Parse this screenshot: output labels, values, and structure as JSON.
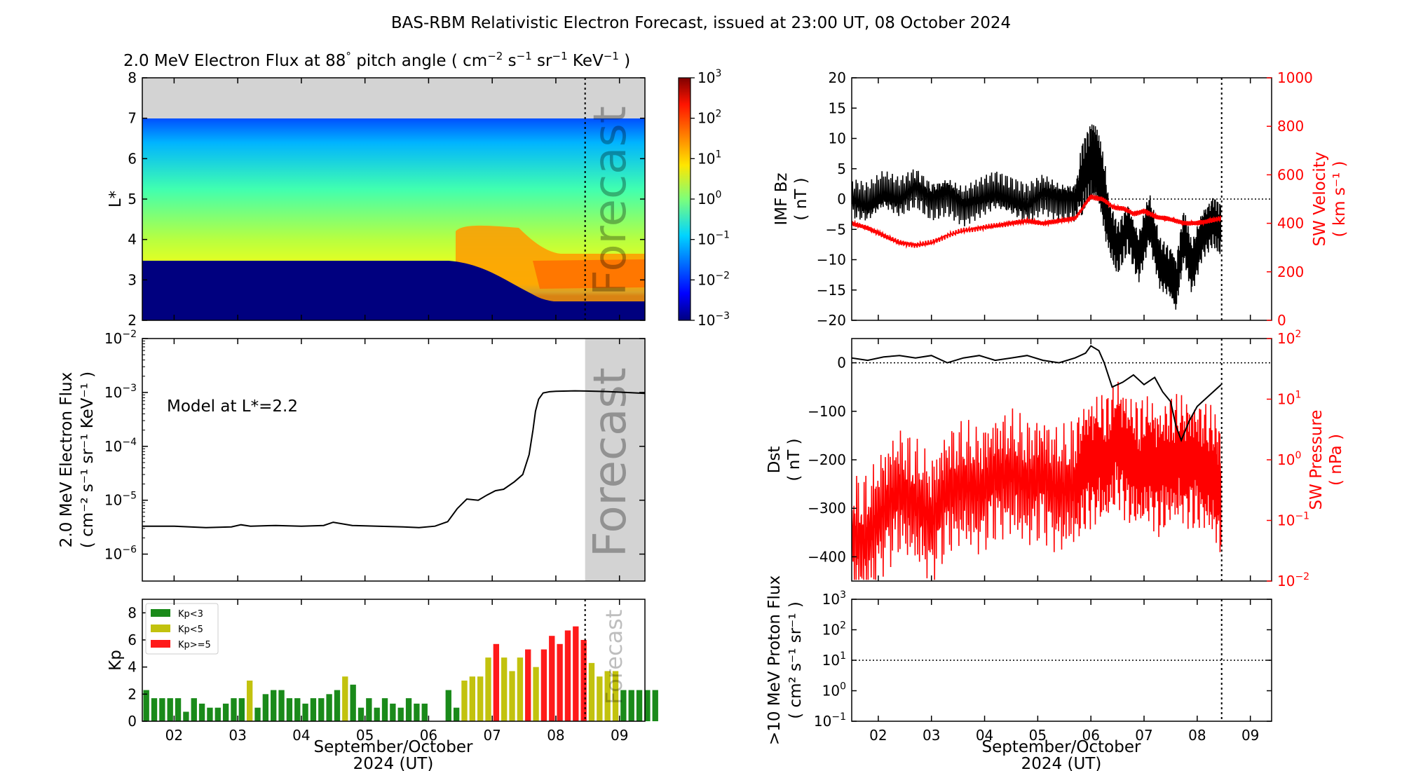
{
  "figure": {
    "title": "BAS-RBM Relativistic Electron Forecast, issued at 23:00 UT, 08 October 2024",
    "colors": {
      "observed": "#000000",
      "solarwind": "#ff0000",
      "forecast_band": "#d3d3d3",
      "kp_low": "#1a8a1a",
      "kp_mid": "#c2c20e",
      "kp_high": "#ff1a1a"
    }
  },
  "time_axis": {
    "tick_labels": [
      "02",
      "03",
      "04",
      "05",
      "06",
      "07",
      "08",
      "09"
    ],
    "xlabel_line1": "September/October",
    "xlabel_line2": "2024 (UT)",
    "xrange_days": [
      1.5,
      9.4
    ],
    "ticks_days": [
      2,
      3,
      4,
      5,
      6,
      7,
      8,
      9
    ],
    "forecast_start_day": 8.46
  },
  "chart_data": [
    {
      "id": "flux_map",
      "type": "heatmap",
      "title": "2.0 MeV Electron Flux at 88° pitch angle ( cm⁻² s⁻¹ sr⁻¹ KeV⁻¹ )",
      "title_parts": {
        "base": "2.0 MeV Electron Flux at 88",
        "degree": "°",
        "after_deg": " pitch angle ( cm",
        "e1": "−2",
        "s": " s",
        "e2": "−1",
        "sr": " sr",
        "e3": "−1",
        "kev": " KeV",
        "e4": "−1",
        "close": " )"
      },
      "ylabel": "L*",
      "ylim": [
        2,
        8
      ],
      "yticks": [
        "2",
        "3",
        "4",
        "5",
        "6",
        "7",
        "8"
      ],
      "annotation": "Forecast",
      "colorbar": {
        "base": "10",
        "exponents": [
          "−3",
          "−2",
          "−1",
          "0",
          "1",
          "2",
          "3"
        ],
        "range_log10": [
          -3,
          3
        ]
      }
    },
    {
      "id": "flux_line",
      "type": "line",
      "ylabel_line1": "2.0 MeV Electron Flux",
      "ylabel_line2": "( cm⁻² s⁻¹ sr⁻¹ KeV⁻¹ )",
      "annotation": "Model at L*=2.2",
      "forecast_label": "Forecast",
      "ylim_log10": [
        -6.5,
        -2
      ],
      "yticks": {
        "base": "10",
        "exponents": [
          "−6",
          "−5",
          "−4",
          "−3",
          "−2"
        ]
      },
      "x": [
        1.5,
        2.0,
        2.5,
        2.9,
        3.05,
        3.2,
        3.6,
        4.0,
        4.35,
        4.5,
        4.8,
        5.2,
        5.6,
        5.85,
        6.1,
        6.3,
        6.45,
        6.6,
        6.78,
        6.92,
        7.05,
        7.18,
        7.35,
        7.48,
        7.58,
        7.64,
        7.68,
        7.73,
        7.8,
        7.9,
        8.0,
        8.3,
        8.46,
        8.8,
        9.1,
        9.4
      ],
      "values": [
        3.3e-06,
        3.3e-06,
        3.1e-06,
        3.2e-06,
        3.5e-06,
        3.3e-06,
        3.4e-06,
        3.3e-06,
        3.4e-06,
        3.9e-06,
        3.4e-06,
        3.3e-06,
        3.2e-06,
        3.1e-06,
        3.3e-06,
        4e-06,
        7e-06,
        1.05e-05,
        1e-05,
        1.25e-05,
        1.5e-05,
        1.6e-05,
        2.2e-05,
        3e-05,
        7e-05,
        0.0002,
        0.00045,
        0.00075,
        0.00098,
        0.00103,
        0.00105,
        0.00107,
        0.00106,
        0.00104,
        0.001,
        0.00096
      ]
    },
    {
      "id": "kp",
      "type": "bar",
      "ylabel": "Kp",
      "ylim": [
        0,
        9
      ],
      "yticks": [
        "0",
        "2",
        "4",
        "6",
        "8"
      ],
      "forecast_label": "Forecast",
      "legend": [
        "Kp<3",
        "Kp<5",
        "Kp>=5"
      ],
      "start_day": 1.5,
      "bin_days": 0.125,
      "values": [
        2.3,
        1.7,
        1.7,
        1.7,
        1.7,
        0.7,
        1.7,
        1.3,
        1.0,
        1.0,
        1.3,
        1.7,
        1.7,
        3.0,
        1.0,
        2.0,
        2.3,
        2.3,
        1.7,
        1.7,
        1.3,
        1.7,
        1.7,
        2.0,
        2.3,
        3.3,
        2.7,
        1.0,
        1.7,
        1.0,
        1.7,
        1.3,
        1.0,
        1.7,
        1.3,
        1.3,
        0,
        0,
        2.3,
        1.0,
        3.0,
        3.3,
        3.3,
        4.7,
        5.7,
        4.7,
        3.7,
        4.7,
        5.3,
        4.0,
        5.3,
        6.3,
        5.7,
        6.7,
        7.0,
        6.0,
        4.3,
        3.3,
        3.7,
        3.7,
        2.3,
        2.3,
        2.3,
        2.3,
        2.3
      ]
    },
    {
      "id": "imf_sw",
      "type": "line",
      "left_ylabel_line1": "IMF Bz",
      "left_ylabel_line2": "( nT )",
      "right_ylabel_line1": "SW Velocity",
      "right_ylabel_line2": "( km s⁻¹ )",
      "left_ylim": [
        -20,
        20
      ],
      "left_yticks": [
        "−20",
        "−15",
        "−10",
        "−5",
        "0",
        "5",
        "10",
        "15",
        "20"
      ],
      "right_ylim": [
        0,
        1000
      ],
      "right_yticks": [
        "0",
        "200",
        "400",
        "600",
        "800",
        "1000"
      ],
      "series": [
        {
          "name": "IMF Bz",
          "x": [
            1.5,
            1.8,
            2.1,
            2.4,
            2.7,
            3.0,
            3.3,
            3.6,
            3.9,
            4.2,
            4.5,
            4.8,
            5.1,
            5.4,
            5.7,
            5.85,
            6.0,
            6.1,
            6.2,
            6.35,
            6.5,
            6.7,
            6.9,
            7.1,
            7.3,
            7.5,
            7.6,
            7.75,
            7.9,
            8.1,
            8.3,
            8.45
          ],
          "values": [
            0,
            -1,
            1,
            0,
            2,
            0,
            1,
            -1,
            0,
            1,
            0,
            -1,
            1,
            0,
            0,
            4,
            6,
            5,
            2,
            -5,
            -8,
            -4,
            -9,
            -3,
            -11,
            -13,
            -15,
            -6,
            -11,
            -5,
            -3,
            -5
          ]
        },
        {
          "name": "SW Velocity",
          "x": [
            1.5,
            1.8,
            2.1,
            2.4,
            2.7,
            3.0,
            3.3,
            3.6,
            3.9,
            4.2,
            4.5,
            4.8,
            5.1,
            5.4,
            5.7,
            5.9,
            6.0,
            6.2,
            6.4,
            6.6,
            6.8,
            7.0,
            7.2,
            7.4,
            7.6,
            7.8,
            8.0,
            8.2,
            8.45
          ],
          "values": [
            400,
            380,
            350,
            320,
            310,
            320,
            350,
            370,
            380,
            390,
            400,
            410,
            400,
            410,
            420,
            480,
            510,
            500,
            470,
            460,
            440,
            450,
            430,
            420,
            410,
            400,
            400,
            410,
            420
          ]
        }
      ]
    },
    {
      "id": "dst_pressure",
      "type": "line",
      "left_ylabel_line1": "Dst",
      "left_ylabel_line2": "( nT )",
      "right_ylabel_line1": "SW Pressure",
      "right_ylabel_line2": "( nPa )",
      "left_ylim": [
        -450,
        50
      ],
      "left_yticks": [
        "−400",
        "−300",
        "−200",
        "−100",
        "0"
      ],
      "right_ylim_log10": [
        -2,
        2
      ],
      "right_yticks": {
        "base": "10",
        "exponents": [
          "−2",
          "−1",
          "0",
          "1",
          "2"
        ]
      },
      "series": [
        {
          "name": "Dst",
          "x": [
            1.5,
            1.8,
            2.1,
            2.4,
            2.7,
            3.0,
            3.3,
            3.6,
            3.9,
            4.2,
            4.5,
            4.8,
            5.1,
            5.4,
            5.7,
            5.9,
            6.0,
            6.15,
            6.25,
            6.4,
            6.6,
            6.8,
            7.0,
            7.2,
            7.35,
            7.5,
            7.6,
            7.7,
            7.85,
            8.0,
            8.2,
            8.45
          ],
          "values": [
            10,
            5,
            12,
            15,
            10,
            15,
            0,
            10,
            15,
            5,
            10,
            15,
            5,
            0,
            10,
            20,
            35,
            25,
            0,
            -50,
            -40,
            -25,
            -45,
            -30,
            -60,
            -80,
            -130,
            -160,
            -120,
            -90,
            -70,
            -45
          ]
        },
        {
          "name": "SW Pressure",
          "x": [
            1.5,
            1.8,
            2.1,
            2.4,
            2.7,
            3.0,
            3.3,
            3.6,
            3.9,
            4.2,
            4.5,
            4.8,
            5.1,
            5.4,
            5.7,
            5.9,
            6.1,
            6.3,
            6.5,
            6.7,
            6.9,
            7.1,
            7.3,
            7.5,
            7.7,
            7.9,
            8.1,
            8.3,
            8.45
          ],
          "values": [
            0.05,
            0.05,
            0.15,
            0.3,
            0.2,
            0.1,
            0.3,
            0.4,
            0.3,
            0.5,
            0.6,
            0.4,
            0.5,
            0.3,
            0.4,
            0.8,
            1.0,
            1.0,
            2.0,
            1.0,
            0.8,
            1.0,
            0.6,
            1.0,
            1.0,
            0.8,
            0.8,
            0.6,
            0.3
          ]
        }
      ]
    },
    {
      "id": "proton",
      "type": "line",
      "ylabel_line1": ">10 MeV Proton Flux",
      "ylabel_line2": "( cm² s⁻¹ sr⁻¹ )",
      "ylim_log10": [
        -1,
        3
      ],
      "yticks": {
        "base": "10",
        "exponents": [
          "−1",
          "0",
          "1",
          "2",
          "3"
        ]
      },
      "threshold_log10": 1
    }
  ]
}
